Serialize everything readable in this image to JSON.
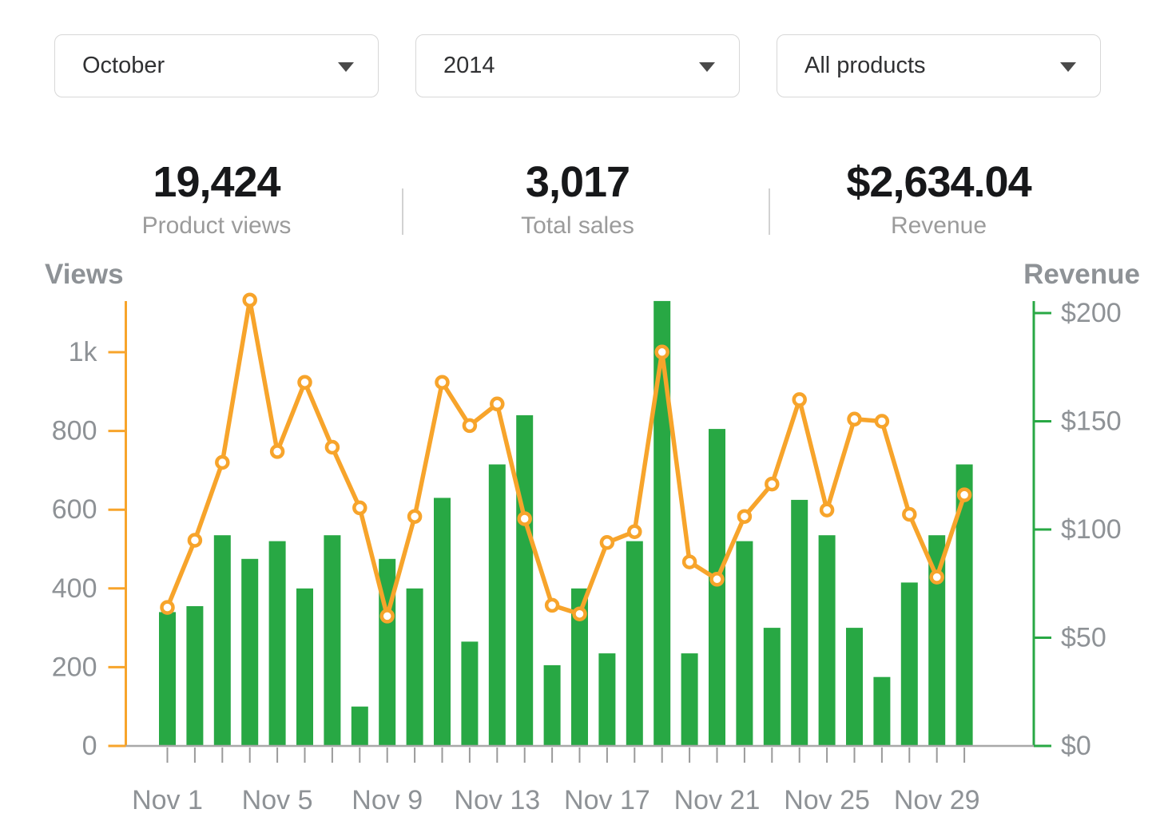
{
  "filters": [
    {
      "value": "October"
    },
    {
      "value": "2014"
    },
    {
      "value": "All products"
    }
  ],
  "stats": [
    {
      "value": "19,424",
      "label": "Product views"
    },
    {
      "value": "3,017",
      "label": "Total sales"
    },
    {
      "value": "$2,634.04",
      "label": "Revenue"
    }
  ],
  "chart_data": {
    "type": "combo",
    "categories": [
      "Nov 1",
      "Nov 2",
      "Nov 3",
      "Nov 4",
      "Nov 5",
      "Nov 6",
      "Nov 7",
      "Nov 8",
      "Nov 9",
      "Nov 10",
      "Nov 11",
      "Nov 12",
      "Nov 13",
      "Nov 14",
      "Nov 15",
      "Nov 16",
      "Nov 17",
      "Nov 18",
      "Nov 19",
      "Nov 20",
      "Nov 21",
      "Nov 22",
      "Nov 23",
      "Nov 24",
      "Nov 25",
      "Nov 26",
      "Nov 27",
      "Nov 28",
      "Nov 29",
      "Nov 30"
    ],
    "x_label_every": 4,
    "x_labels_shown": [
      "Nov 1",
      "Nov 5",
      "Nov 9",
      "Nov 13",
      "Nov 17",
      "Nov 21",
      "Nov 25",
      "Nov 29"
    ],
    "series": [
      {
        "name": "Views",
        "type": "bar",
        "axis": "left",
        "color": "#28a844",
        "values": [
          340,
          355,
          535,
          475,
          520,
          400,
          535,
          100,
          475,
          400,
          630,
          265,
          715,
          840,
          205,
          400,
          235,
          520,
          1130,
          235,
          805,
          520,
          300,
          625,
          535,
          300,
          175,
          415,
          535,
          715
        ]
      },
      {
        "name": "Revenue",
        "type": "line",
        "axis": "right",
        "color": "#f7a42b",
        "marker_fill": "#ffffff",
        "values": [
          64,
          95,
          131,
          206,
          136,
          168,
          138,
          110,
          60,
          106,
          168,
          148,
          158,
          105,
          65,
          61,
          94,
          99,
          182,
          85,
          77,
          106,
          121,
          160,
          109,
          151,
          150,
          107,
          78,
          116
        ]
      }
    ],
    "left_axis": {
      "label": "Views",
      "tick_labels": [
        "0",
        "200",
        "400",
        "600",
        "800",
        "1k"
      ],
      "tick_values": [
        0,
        200,
        400,
        600,
        800,
        1000
      ],
      "range": [
        0,
        1130
      ],
      "axis_color": "#f7a42b",
      "text_color": "#8e9296"
    },
    "right_axis": {
      "label": "Revenue",
      "tick_labels": [
        "$0",
        "$50",
        "$100",
        "$150",
        "$200"
      ],
      "tick_values": [
        0,
        50,
        100,
        150,
        200
      ],
      "range": [
        0,
        206
      ],
      "axis_color": "#28a844",
      "text_color": "#8e9296"
    },
    "grid": false,
    "legend": "none"
  }
}
